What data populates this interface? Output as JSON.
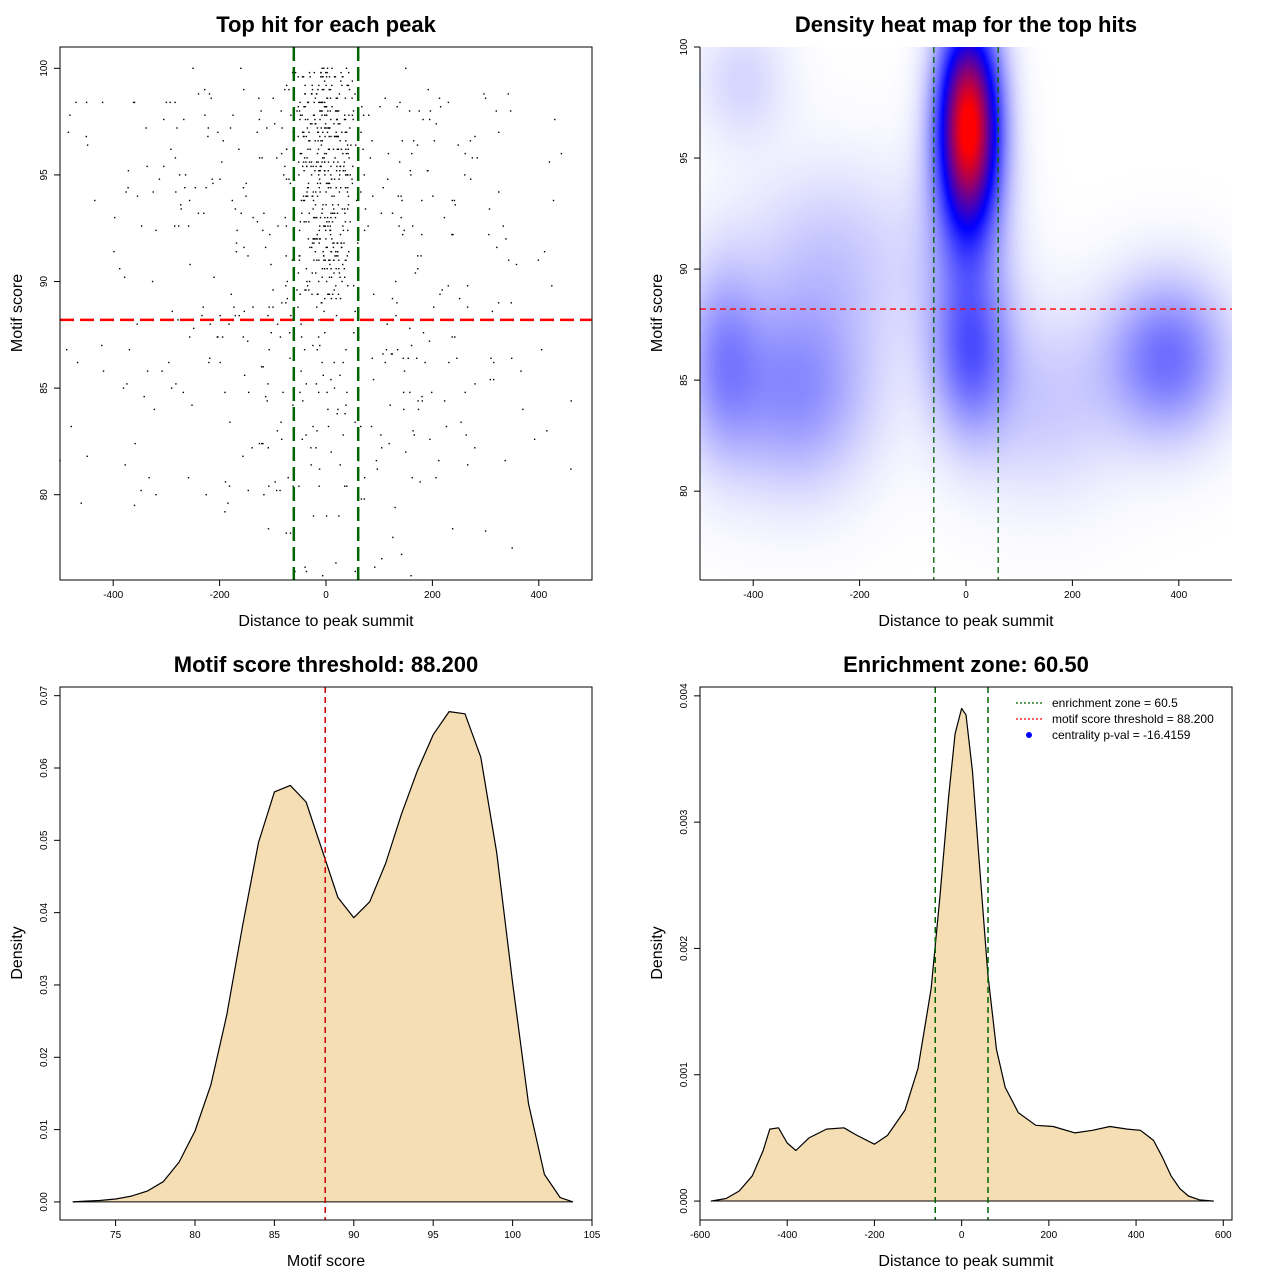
{
  "chart_data": [
    {
      "type": "scatter",
      "title": "Top hit for each peak",
      "xlabel": "Distance to peak summit",
      "ylabel": "Motif score",
      "xlim": [
        -500,
        500
      ],
      "ylim": [
        76,
        101
      ],
      "xticks": [
        -400,
        -200,
        0,
        200,
        400
      ],
      "yticks": [
        80,
        85,
        90,
        95,
        100
      ],
      "hline": {
        "y": 88.2,
        "color": "#ff0000",
        "style": "dashed"
      },
      "vlines": [
        {
          "x": -60.5,
          "color": "#006400",
          "style": "dashed"
        },
        {
          "x": 60.5,
          "color": "#006400",
          "style": "dashed"
        }
      ],
      "clusters": [
        {
          "x_mean": 0,
          "x_sd": 30,
          "y_min": 89,
          "y_max": 100,
          "n": 420
        },
        {
          "x_mean": 0,
          "x_sd": 230,
          "y_min": 80,
          "y_max": 99,
          "n": 430
        },
        {
          "x_mean": 0,
          "x_sd": 90,
          "y_min": 76,
          "y_max": 90,
          "n": 60
        }
      ],
      "points": [
        {
          "x": -470,
          "y": 98.4
        },
        {
          "x": -450,
          "y": 98.4
        },
        {
          "x": -420,
          "y": 98.4
        },
        {
          "x": -360,
          "y": 98.4
        },
        {
          "x": -300,
          "y": 98.4
        },
        {
          "x": -250,
          "y": 100
        },
        {
          "x": -160,
          "y": 100
        },
        {
          "x": 150,
          "y": 100
        },
        {
          "x": 230,
          "y": 98.4
        },
        {
          "x": 300,
          "y": 98.6
        },
        {
          "x": 160,
          "y": 76.2
        },
        {
          "x": 350,
          "y": 77.5
        },
        {
          "x": 300,
          "y": 78.3
        },
        {
          "x": -360,
          "y": 79.5
        },
        {
          "x": -460,
          "y": 79.6
        },
        {
          "x": -190,
          "y": 79.2
        },
        {
          "x": 420,
          "y": 95.6
        },
        {
          "x": 430,
          "y": 97.6
        },
        {
          "x": 280,
          "y": 96.8
        },
        {
          "x": -500,
          "y": 81.6
        }
      ]
    },
    {
      "type": "heatmap",
      "title": "Density heat map for the top hits",
      "xlabel": "Distance to peak summit",
      "ylabel": "Motif score",
      "xlim": [
        -500,
        500
      ],
      "ylim": [
        76,
        100
      ],
      "xticks": [
        -400,
        -200,
        0,
        200,
        400
      ],
      "yticks": [
        80,
        85,
        90,
        95,
        100
      ],
      "colormap": [
        "#ffffff",
        "#0000ff",
        "#ff0000"
      ],
      "hline": {
        "y": 88.2,
        "color": "#ff0000",
        "style": "dashed"
      },
      "vlines": [
        {
          "x": -60.5,
          "color": "#006400",
          "style": "dashed"
        },
        {
          "x": 60.5,
          "color": "#006400",
          "style": "dashed"
        }
      ],
      "density_components": [
        {
          "x": 5,
          "y": 96.5,
          "sx": 40,
          "sy": 3.2,
          "w": 1.0
        },
        {
          "x": 0,
          "y": 90,
          "sx": 60,
          "sy": 4,
          "w": 0.15
        },
        {
          "x": 380,
          "y": 86,
          "sx": 80,
          "sy": 2.5,
          "w": 0.28
        },
        {
          "x": -320,
          "y": 84.5,
          "sx": 100,
          "sy": 3,
          "w": 0.22
        },
        {
          "x": -460,
          "y": 86,
          "sx": 50,
          "sy": 3,
          "w": 0.18
        },
        {
          "x": 10,
          "y": 86,
          "sx": 50,
          "sy": 2.5,
          "w": 0.22
        },
        {
          "x": -250,
          "y": 90.5,
          "sx": 120,
          "sy": 3,
          "w": 0.1
        },
        {
          "x": -420,
          "y": 98.5,
          "sx": 60,
          "sy": 2,
          "w": 0.08
        },
        {
          "x": 150,
          "y": 84,
          "sx": 100,
          "sy": 3,
          "w": 0.1
        }
      ]
    },
    {
      "type": "area",
      "title": "Motif score threshold: 88.200",
      "xlabel": "Motif score",
      "ylabel": "Density",
      "xlim": [
        71.5,
        105
      ],
      "ylim": [
        -0.0025,
        0.0712
      ],
      "xticks": [
        75,
        80,
        85,
        90,
        95,
        100,
        105
      ],
      "yticks": [
        0.0,
        0.01,
        0.02,
        0.03,
        0.04,
        0.05,
        0.06,
        0.07
      ],
      "fill": "#f5deb3",
      "vline": {
        "x": 88.2,
        "color": "#cc0000",
        "style": "dashed"
      },
      "x": [
        72.3,
        73,
        74,
        75,
        76,
        77,
        78,
        79,
        80,
        81,
        82,
        83,
        84,
        85,
        86,
        87,
        88,
        89,
        90,
        91,
        92,
        93,
        94,
        95,
        96,
        97,
        98,
        99,
        100,
        101,
        102,
        103,
        103.8
      ],
      "y": [
        0.0,
        0.0001,
        0.0002,
        0.0004,
        0.0008,
        0.0015,
        0.0028,
        0.0055,
        0.0098,
        0.0162,
        0.0258,
        0.0382,
        0.0497,
        0.0567,
        0.0576,
        0.0553,
        0.0487,
        0.0421,
        0.0393,
        0.0415,
        0.0468,
        0.0536,
        0.0596,
        0.0646,
        0.0678,
        0.0675,
        0.0615,
        0.0483,
        0.0303,
        0.0136,
        0.0038,
        0.0006,
        0.0
      ]
    },
    {
      "type": "area",
      "title": "Enrichment zone: 60.50",
      "xlabel": "Distance to peak summit",
      "ylabel": "Density",
      "xlim": [
        -600,
        620
      ],
      "ylim": [
        -0.00015,
        0.00407
      ],
      "xticks": [
        -600,
        -400,
        -200,
        0,
        200,
        400,
        600
      ],
      "yticks": [
        0.0,
        0.001,
        0.002,
        0.003,
        0.004
      ],
      "fill": "#f5deb3",
      "vlines": [
        {
          "x": -60.5,
          "color": "#006400",
          "style": "dashed"
        },
        {
          "x": 60.5,
          "color": "#006400",
          "style": "dashed"
        }
      ],
      "x": [
        -575,
        -540,
        -510,
        -480,
        -455,
        -440,
        -420,
        -400,
        -380,
        -350,
        -310,
        -270,
        -240,
        -200,
        -170,
        -130,
        -100,
        -70,
        -50,
        -30,
        -15,
        0,
        10,
        25,
        40,
        60,
        80,
        100,
        130,
        170,
        210,
        260,
        300,
        340,
        380,
        410,
        440,
        460,
        480,
        500,
        520,
        545,
        578
      ],
      "y": [
        0.0,
        2e-05,
        8e-05,
        0.0002,
        0.0004,
        0.00057,
        0.00058,
        0.00046,
        0.0004,
        0.0005,
        0.00057,
        0.00058,
        0.00052,
        0.00045,
        0.00052,
        0.00072,
        0.00105,
        0.00168,
        0.0024,
        0.0032,
        0.0037,
        0.0039,
        0.00385,
        0.0034,
        0.0027,
        0.0018,
        0.0012,
        0.0009,
        0.0007,
        0.0006,
        0.00059,
        0.00054,
        0.00056,
        0.00059,
        0.00057,
        0.00056,
        0.00048,
        0.00035,
        0.0002,
        0.0001,
        4e-05,
        1e-05,
        0.0
      ]
    }
  ],
  "legend": {
    "items": [
      {
        "label": "enrichment zone = 60.5",
        "color": "#006400",
        "kind": "dotted-line"
      },
      {
        "label": "motif score threshold = 88.200",
        "color": "#ff0000",
        "kind": "dotted-line"
      },
      {
        "label": "centrality p-val = -16.4159",
        "color": "#0000ff",
        "kind": "point"
      }
    ]
  }
}
